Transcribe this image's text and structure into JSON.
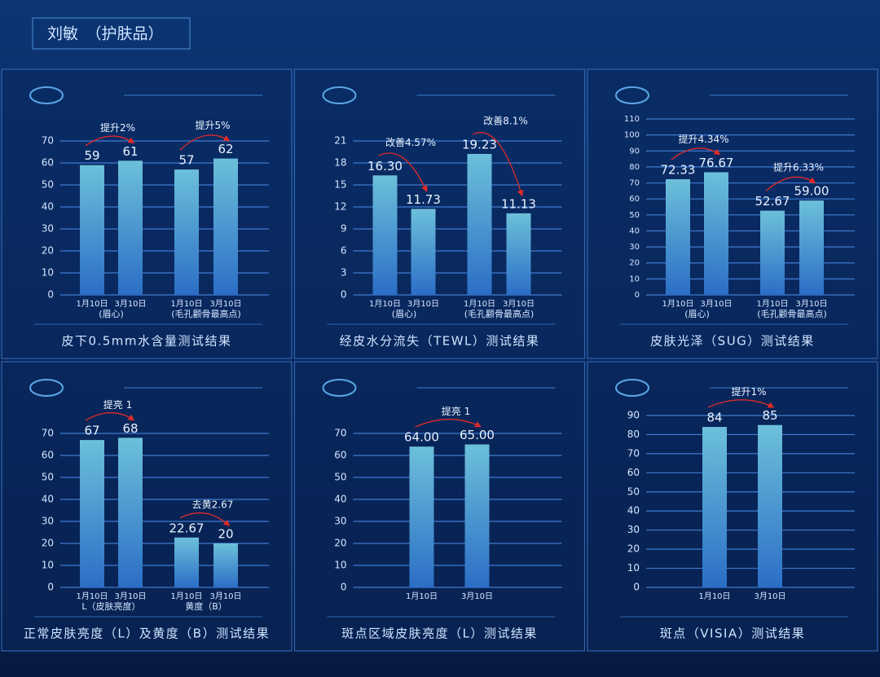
{
  "header": {
    "title": "刘敏　（护肤品）"
  },
  "chart_data": [
    {
      "type": "bar",
      "title": "皮下0.5mm水含量测试结果",
      "categories": [
        "1月10日",
        "3月10日",
        "1月10日",
        "3月10日"
      ],
      "groups": [
        "(眉心)",
        "(毛孔颧骨最高点)"
      ],
      "values": [
        59,
        61,
        57,
        62
      ],
      "annotations": [
        "提升2%",
        "提升5%"
      ],
      "ylim": [
        0,
        70
      ],
      "yticks": [
        0,
        10,
        20,
        30,
        40,
        50,
        60,
        70
      ],
      "grid": true,
      "color": "#4a9fd4"
    },
    {
      "type": "bar",
      "title": "经皮水分流失（TEWL）测试结果",
      "categories": [
        "1月10日",
        "3月10日",
        "1月10日",
        "3月10日"
      ],
      "groups": [
        "(眉心)",
        "(毛孔颧骨最高点)"
      ],
      "values": [
        16.3,
        11.73,
        19.23,
        11.13
      ],
      "value_labels": [
        "16.30",
        "11.73",
        "19.23",
        "11.13"
      ],
      "annotations": [
        "改善4.57%",
        "改善8.1%"
      ],
      "ylim": [
        0,
        21
      ],
      "yticks": [
        0,
        3,
        6,
        9,
        12,
        15,
        18,
        21
      ],
      "grid": true,
      "color": "#4a9fd4"
    },
    {
      "type": "bar",
      "title": "皮肤光泽（SUG）测试结果",
      "categories": [
        "1月10日",
        "3月10日",
        "1月10日",
        "3月10日"
      ],
      "groups": [
        "(眉心)",
        "(毛孔颧骨最高点)"
      ],
      "values": [
        72.33,
        76.67,
        52.67,
        59
      ],
      "value_labels": [
        "72.33",
        "76.67",
        "52.67",
        "59.00"
      ],
      "annotations": [
        "提升4.34%",
        "提升6.33%"
      ],
      "ylim": [
        0,
        110
      ],
      "yticks": [
        0,
        10,
        20,
        30,
        40,
        50,
        60,
        70,
        80,
        90,
        100,
        110
      ],
      "grid": true,
      "color": "#4a9fd4"
    },
    {
      "type": "bar",
      "title": "正常皮肤亮度（L）及黄度（B）测试结果",
      "categories": [
        "1月10日",
        "3月10日",
        "1月10日",
        "3月10日"
      ],
      "groups": [
        "L（皮肤亮度）",
        "黄度（B）"
      ],
      "values": [
        67,
        68,
        22.67,
        20
      ],
      "annotations": [
        "提亮 1",
        "去黄2.67"
      ],
      "ylim": [
        0,
        70
      ],
      "yticks": [
        0,
        10,
        20,
        30,
        40,
        50,
        60,
        70
      ],
      "grid": true,
      "color": "#4a9fd4"
    },
    {
      "type": "bar",
      "title": "斑点区域皮肤亮度（L）测试结果",
      "categories": [
        "1月10日",
        "3月10日"
      ],
      "values": [
        64,
        65
      ],
      "value_labels": [
        "64.00",
        "65.00"
      ],
      "annotations": [
        "提亮 1"
      ],
      "ylim": [
        0,
        70
      ],
      "yticks": [
        0,
        10,
        20,
        30,
        40,
        50,
        60,
        70
      ],
      "grid": true,
      "color": "#4a9fd4"
    },
    {
      "type": "bar",
      "title": "斑点（VISIA）测试结果",
      "categories": [
        "1月10日",
        "3月10日"
      ],
      "values": [
        84,
        85
      ],
      "annotations": [
        "提升1%"
      ],
      "ylim": [
        0,
        90
      ],
      "yticks": [
        0,
        10,
        20,
        30,
        40,
        50,
        60,
        70,
        80,
        90
      ],
      "grid": true,
      "color": "#4a9fd4"
    }
  ]
}
